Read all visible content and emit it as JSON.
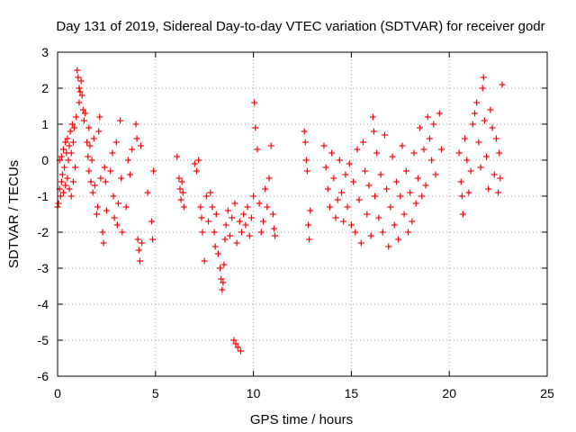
{
  "chart_data": {
    "type": "scatter",
    "title": "Day 131 of 2019, Sidereal Day-to-day VTEC variation (SDTVAR) for receiver godr",
    "xlabel": "GPS time / hours",
    "ylabel": "SDTVAR / TECUs",
    "xlim": [
      0,
      25
    ],
    "ylim": [
      -6,
      3
    ],
    "xticks": [
      "0",
      "5",
      "10",
      "15",
      "20",
      "25"
    ],
    "yticks": [
      "-6",
      "-5",
      "-4",
      "-3",
      "-2",
      "-1",
      "0",
      "1",
      "2",
      "3"
    ],
    "grid": true,
    "marker": "plus",
    "color": "#ff0000",
    "series": [
      {
        "name": "SDTVAR",
        "points": [
          [
            0.0,
            -1.3
          ],
          [
            0.05,
            -1.2
          ],
          [
            0.1,
            -0.8
          ],
          [
            0.1,
            0.0
          ],
          [
            0.15,
            -1.0
          ],
          [
            0.2,
            -0.6
          ],
          [
            0.2,
            0.1
          ],
          [
            0.25,
            -0.4
          ],
          [
            0.3,
            -0.9
          ],
          [
            0.3,
            0.3
          ],
          [
            0.35,
            -0.2
          ],
          [
            0.4,
            0.5
          ],
          [
            0.4,
            -0.7
          ],
          [
            0.45,
            0.2
          ],
          [
            0.5,
            0.6
          ],
          [
            0.5,
            -0.5
          ],
          [
            0.55,
            0.0
          ],
          [
            0.6,
            0.4
          ],
          [
            0.6,
            -0.8
          ],
          [
            0.65,
            0.8
          ],
          [
            0.7,
            0.2
          ],
          [
            0.7,
            -1.0
          ],
          [
            0.75,
            1.0
          ],
          [
            0.8,
            0.5
          ],
          [
            0.8,
            -0.6
          ],
          [
            0.85,
            0.9
          ],
          [
            0.9,
            -0.2
          ],
          [
            0.95,
            1.2
          ],
          [
            1.0,
            2.5
          ],
          [
            1.05,
            2.3
          ],
          [
            1.1,
            2.0
          ],
          [
            1.1,
            1.6
          ],
          [
            1.15,
            1.9
          ],
          [
            1.2,
            2.2
          ],
          [
            1.25,
            1.8
          ],
          [
            1.3,
            1.4
          ],
          [
            1.35,
            1.1
          ],
          [
            1.4,
            1.3
          ],
          [
            1.5,
            0.5
          ],
          [
            1.55,
            0.1
          ],
          [
            1.6,
            -0.3
          ],
          [
            1.6,
            0.9
          ],
          [
            1.65,
            0.4
          ],
          [
            1.7,
            -0.6
          ],
          [
            1.75,
            0.0
          ],
          [
            1.8,
            -0.9
          ],
          [
            1.85,
            0.6
          ],
          [
            1.9,
            -0.7
          ],
          [
            2.0,
            -1.5
          ],
          [
            2.05,
            -1.3
          ],
          [
            2.1,
            0.8
          ],
          [
            2.15,
            1.2
          ],
          [
            2.2,
            -0.5
          ],
          [
            2.3,
            -2.0
          ],
          [
            2.35,
            -2.3
          ],
          [
            2.4,
            -0.2
          ],
          [
            2.45,
            -0.6
          ],
          [
            2.5,
            -1.4
          ],
          [
            2.7,
            -0.3
          ],
          [
            2.8,
            0.2
          ],
          [
            2.85,
            -1.0
          ],
          [
            2.9,
            -1.6
          ],
          [
            3.0,
            0.5
          ],
          [
            3.05,
            -1.8
          ],
          [
            3.1,
            -1.2
          ],
          [
            3.2,
            1.1
          ],
          [
            3.25,
            -0.5
          ],
          [
            3.3,
            -2.0
          ],
          [
            3.5,
            -1.3
          ],
          [
            3.6,
            0.0
          ],
          [
            3.7,
            -0.4
          ],
          [
            3.8,
            0.3
          ],
          [
            4.0,
            1.0
          ],
          [
            4.05,
            0.6
          ],
          [
            4.1,
            -2.2
          ],
          [
            4.15,
            -2.5
          ],
          [
            4.2,
            -2.8
          ],
          [
            4.25,
            0.4
          ],
          [
            4.3,
            -2.3
          ],
          [
            4.6,
            -0.9
          ],
          [
            4.8,
            -1.7
          ],
          [
            4.85,
            -2.2
          ],
          [
            4.9,
            -0.3
          ],
          [
            6.1,
            0.1
          ],
          [
            6.2,
            -0.5
          ],
          [
            6.25,
            -0.8
          ],
          [
            6.3,
            -1.1
          ],
          [
            6.35,
            -0.6
          ],
          [
            6.4,
            -0.9
          ],
          [
            6.45,
            -1.3
          ],
          [
            7.0,
            -0.1
          ],
          [
            7.1,
            -0.3
          ],
          [
            7.2,
            0.0
          ],
          [
            7.3,
            -1.3
          ],
          [
            7.35,
            -1.6
          ],
          [
            7.4,
            -2.0
          ],
          [
            7.5,
            -2.8
          ],
          [
            7.6,
            -1.0
          ],
          [
            7.7,
            -1.7
          ],
          [
            7.8,
            -0.9
          ],
          [
            7.9,
            -1.3
          ],
          [
            8.0,
            -2.0
          ],
          [
            8.05,
            -2.4
          ],
          [
            8.1,
            -1.5
          ],
          [
            8.2,
            -2.6
          ],
          [
            8.3,
            -3.0
          ],
          [
            8.35,
            -3.3
          ],
          [
            8.4,
            -3.6
          ],
          [
            8.45,
            -3.4
          ],
          [
            8.5,
            -2.9
          ],
          [
            8.55,
            -2.2
          ],
          [
            8.6,
            -1.8
          ],
          [
            8.7,
            -1.4
          ],
          [
            8.8,
            -2.1
          ],
          [
            8.9,
            -1.6
          ],
          [
            9.0,
            -5.0
          ],
          [
            9.05,
            -1.2
          ],
          [
            9.1,
            -5.1
          ],
          [
            9.15,
            -2.3
          ],
          [
            9.2,
            -5.2
          ],
          [
            9.3,
            -1.7
          ],
          [
            9.35,
            -5.3
          ],
          [
            9.4,
            -2.0
          ],
          [
            9.5,
            -1.5
          ],
          [
            9.6,
            -1.8
          ],
          [
            9.7,
            -1.3
          ],
          [
            9.8,
            -2.1
          ],
          [
            9.9,
            -1.6
          ],
          [
            10.0,
            -1.0
          ],
          [
            10.05,
            1.6
          ],
          [
            10.1,
            0.9
          ],
          [
            10.2,
            0.3
          ],
          [
            10.3,
            -1.2
          ],
          [
            10.4,
            -2.0
          ],
          [
            10.5,
            -1.7
          ],
          [
            10.6,
            -0.8
          ],
          [
            10.7,
            -1.3
          ],
          [
            10.8,
            -0.5
          ],
          [
            10.9,
            0.4
          ],
          [
            11.0,
            -1.5
          ],
          [
            11.05,
            -1.9
          ],
          [
            11.1,
            -2.1
          ],
          [
            12.6,
            0.8
          ],
          [
            12.65,
            0.5
          ],
          [
            12.7,
            0.0
          ],
          [
            12.75,
            -0.3
          ],
          [
            12.8,
            -1.8
          ],
          [
            12.85,
            -2.2
          ],
          [
            12.9,
            -1.4
          ],
          [
            13.6,
            0.4
          ],
          [
            13.7,
            -0.2
          ],
          [
            13.8,
            -0.8
          ],
          [
            13.9,
            -1.3
          ],
          [
            14.0,
            0.2
          ],
          [
            14.1,
            -0.5
          ],
          [
            14.2,
            -1.6
          ],
          [
            14.3,
            -1.1
          ],
          [
            14.4,
            0.0
          ],
          [
            14.5,
            -0.9
          ],
          [
            14.6,
            -1.7
          ],
          [
            14.7,
            -0.4
          ],
          [
            14.8,
            -1.3
          ],
          [
            14.9,
            -0.1
          ],
          [
            15.0,
            -1.8
          ],
          [
            15.1,
            -0.6
          ],
          [
            15.2,
            -2.0
          ],
          [
            15.3,
            0.3
          ],
          [
            15.4,
            -1.1
          ],
          [
            15.5,
            -2.3
          ],
          [
            15.6,
            0.5
          ],
          [
            15.7,
            -0.3
          ],
          [
            15.8,
            -1.5
          ],
          [
            15.9,
            -0.7
          ],
          [
            16.0,
            -2.1
          ],
          [
            16.1,
            1.2
          ],
          [
            16.15,
            0.8
          ],
          [
            16.2,
            -1.0
          ],
          [
            16.3,
            0.2
          ],
          [
            16.4,
            -1.6
          ],
          [
            16.5,
            -0.4
          ],
          [
            16.6,
            -2.0
          ],
          [
            16.7,
            0.7
          ],
          [
            16.8,
            -0.8
          ],
          [
            16.9,
            -2.4
          ],
          [
            17.0,
            -1.3
          ],
          [
            17.1,
            0.1
          ],
          [
            17.2,
            -1.8
          ],
          [
            17.3,
            -0.6
          ],
          [
            17.4,
            -2.2
          ],
          [
            17.5,
            -1.0
          ],
          [
            17.6,
            0.4
          ],
          [
            17.7,
            -1.5
          ],
          [
            17.8,
            -0.3
          ],
          [
            17.9,
            -2.0
          ],
          [
            18.0,
            -0.9
          ],
          [
            18.1,
            -1.7
          ],
          [
            18.2,
            0.2
          ],
          [
            18.3,
            -1.2
          ],
          [
            18.4,
            -0.5
          ],
          [
            18.5,
            0.9
          ],
          [
            18.6,
            -1.0
          ],
          [
            18.7,
            0.3
          ],
          [
            18.8,
            -0.7
          ],
          [
            18.9,
            1.2
          ],
          [
            19.0,
            0.6
          ],
          [
            19.1,
            0.0
          ],
          [
            19.2,
            1.0
          ],
          [
            19.3,
            -0.4
          ],
          [
            19.5,
            1.3
          ],
          [
            19.6,
            0.3
          ],
          [
            20.5,
            0.2
          ],
          [
            20.6,
            -0.6
          ],
          [
            20.65,
            -1.0
          ],
          [
            20.7,
            -1.5
          ],
          [
            20.8,
            0.6
          ],
          [
            20.9,
            0.0
          ],
          [
            21.0,
            -0.9
          ],
          [
            21.1,
            -0.3
          ],
          [
            21.2,
            1.0
          ],
          [
            21.3,
            1.3
          ],
          [
            21.4,
            1.6
          ],
          [
            21.5,
            0.5
          ],
          [
            21.6,
            -0.2
          ],
          [
            21.7,
            2.0
          ],
          [
            21.75,
            2.3
          ],
          [
            21.8,
            1.1
          ],
          [
            21.9,
            0.1
          ],
          [
            22.0,
            -0.8
          ],
          [
            22.1,
            1.4
          ],
          [
            22.2,
            0.9
          ],
          [
            22.3,
            -0.4
          ],
          [
            22.4,
            0.6
          ],
          [
            22.5,
            -0.9
          ],
          [
            22.55,
            0.2
          ],
          [
            22.6,
            -0.5
          ],
          [
            22.7,
            2.1
          ]
        ]
      }
    ]
  }
}
